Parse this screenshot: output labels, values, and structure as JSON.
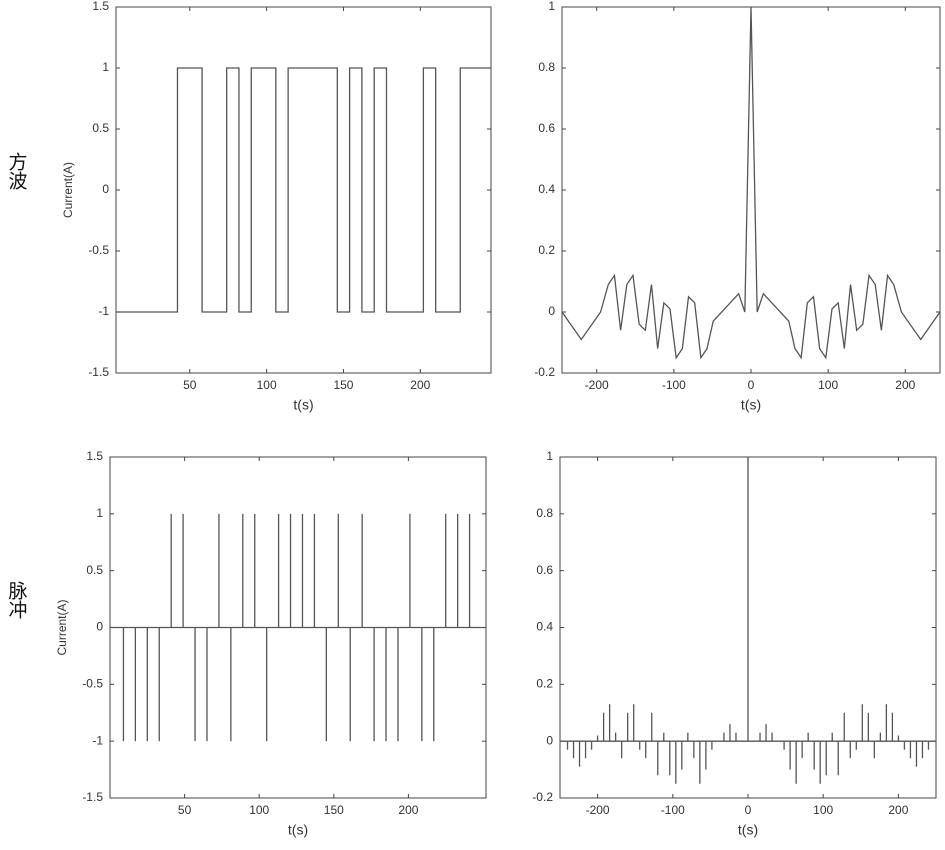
{
  "row_labels": [
    "方波",
    "脉冲"
  ],
  "chart_data": [
    {
      "type": "line",
      "xlabel": "t(s)",
      "ylabel": "Current(A)",
      "color": "#555555",
      "x": [
        2,
        42,
        42,
        58,
        58,
        74,
        74,
        82,
        82,
        90,
        90,
        106,
        106,
        114,
        114,
        146,
        146,
        154,
        154,
        162,
        162,
        170,
        170,
        178,
        178,
        202,
        202,
        210,
        210,
        226,
        226,
        246
      ],
      "values": [
        -1,
        -1,
        1,
        1,
        -1,
        -1,
        1,
        1,
        -1,
        -1,
        1,
        1,
        -1,
        -1,
        1,
        1,
        -1,
        -1,
        1,
        1,
        -1,
        -1,
        1,
        1,
        -1,
        -1,
        1,
        1,
        -1,
        -1,
        1,
        1
      ],
      "xlim": [
        2,
        246
      ],
      "ylim": [
        -1.5,
        1.5
      ],
      "xticks": [
        50,
        100,
        150,
        200
      ],
      "yticks": [
        -1.5,
        -1,
        -0.5,
        0,
        0.5,
        1,
        1.5
      ]
    },
    {
      "type": "line",
      "xlabel": "t(s)",
      "color": "#555555",
      "x": [
        -245,
        -220,
        -195,
        -185,
        -177,
        -169,
        -161,
        -153,
        -145,
        -137,
        -129,
        -121,
        -113,
        -105,
        -97,
        -89,
        -81,
        -73,
        -65,
        -57,
        -49,
        -16,
        -8,
        0,
        8,
        16,
        49,
        57,
        65,
        73,
        81,
        89,
        97,
        105,
        113,
        121,
        129,
        137,
        145,
        153,
        161,
        169,
        177,
        185,
        195,
        220,
        245
      ],
      "values": [
        0,
        -0.09,
        0,
        0.09,
        0.12,
        -0.06,
        0.09,
        0.12,
        -0.04,
        -0.06,
        0.09,
        -0.12,
        0.03,
        0.01,
        -0.15,
        -0.12,
        0.05,
        0.03,
        -0.15,
        -0.12,
        -0.03,
        0.06,
        0,
        1,
        0,
        0.06,
        -0.03,
        -0.12,
        -0.15,
        0.03,
        0.05,
        -0.12,
        -0.15,
        0.01,
        0.03,
        -0.12,
        0.09,
        -0.06,
        -0.04,
        0.12,
        0.09,
        -0.06,
        0.12,
        0.09,
        0,
        -0.09,
        0
      ],
      "xlim": [
        -245,
        245
      ],
      "ylim": [
        -0.2,
        1
      ],
      "xticks": [
        -200,
        -100,
        0,
        100,
        200
      ],
      "yticks": [
        -0.2,
        0,
        0.2,
        0.4,
        0.6,
        0.8,
        1
      ]
    },
    {
      "type": "stem",
      "xlabel": "t(s)",
      "ylabel": "Current(A)",
      "color": "#555555",
      "x": [
        9,
        17,
        25,
        33,
        41,
        49,
        57,
        65,
        73,
        81,
        89,
        97,
        105,
        113,
        121,
        129,
        137,
        145,
        153,
        161,
        169,
        177,
        185,
        193,
        201,
        209,
        217,
        225,
        233,
        241
      ],
      "values": [
        -1,
        -1,
        -1,
        -1,
        1,
        1,
        -1,
        -1,
        1,
        -1,
        1,
        1,
        -1,
        1,
        1,
        1,
        1,
        -1,
        1,
        -1,
        1,
        -1,
        -1,
        -1,
        1,
        -1,
        -1,
        1,
        1,
        1
      ],
      "xlim": [
        0,
        252
      ],
      "ylim": [
        -1.5,
        1.5
      ],
      "xticks": [
        50,
        100,
        150,
        200
      ],
      "yticks": [
        -1.5,
        -1,
        -0.5,
        0,
        0.5,
        1,
        1.5
      ]
    },
    {
      "type": "stem",
      "xlabel": "t(s)",
      "color": "#555555",
      "x": [
        -240,
        -232,
        -224,
        -216,
        -208,
        -200,
        -192,
        -184,
        -176,
        -168,
        -160,
        -152,
        -144,
        -136,
        -128,
        -120,
        -112,
        -104,
        -96,
        -88,
        -80,
        -72,
        -64,
        -56,
        -48,
        -40,
        -32,
        -24,
        -16,
        -8,
        0,
        8,
        16,
        24,
        32,
        40,
        48,
        56,
        64,
        72,
        80,
        88,
        96,
        104,
        112,
        120,
        128,
        136,
        144,
        152,
        160,
        168,
        176,
        184,
        192,
        200,
        208,
        216,
        224,
        232,
        240
      ],
      "values": [
        -0.03,
        -0.06,
        -0.09,
        -0.06,
        -0.03,
        0.02,
        0.1,
        0.13,
        0.03,
        -0.06,
        0.1,
        0.13,
        -0.03,
        -0.06,
        0.1,
        -0.12,
        0.03,
        -0.12,
        -0.15,
        -0.1,
        0.03,
        -0.06,
        -0.15,
        -0.1,
        -0.03,
        0,
        0.03,
        0.06,
        0.03,
        0,
        1,
        0,
        0.03,
        0.06,
        0.03,
        0,
        -0.03,
        -0.1,
        -0.15,
        -0.06,
        0.03,
        -0.1,
        -0.15,
        -0.12,
        0.03,
        -0.12,
        0.1,
        -0.06,
        -0.03,
        0.13,
        0.1,
        -0.06,
        0.03,
        0.13,
        0.1,
        0.02,
        -0.03,
        -0.06,
        -0.09,
        -0.06,
        -0.03
      ],
      "xlim": [
        -250,
        250
      ],
      "ylim": [
        -0.2,
        1
      ],
      "xticks": [
        -200,
        -100,
        0,
        100,
        200
      ],
      "yticks": [
        -0.2,
        0,
        0.2,
        0.4,
        0.6,
        0.8,
        1
      ]
    }
  ]
}
